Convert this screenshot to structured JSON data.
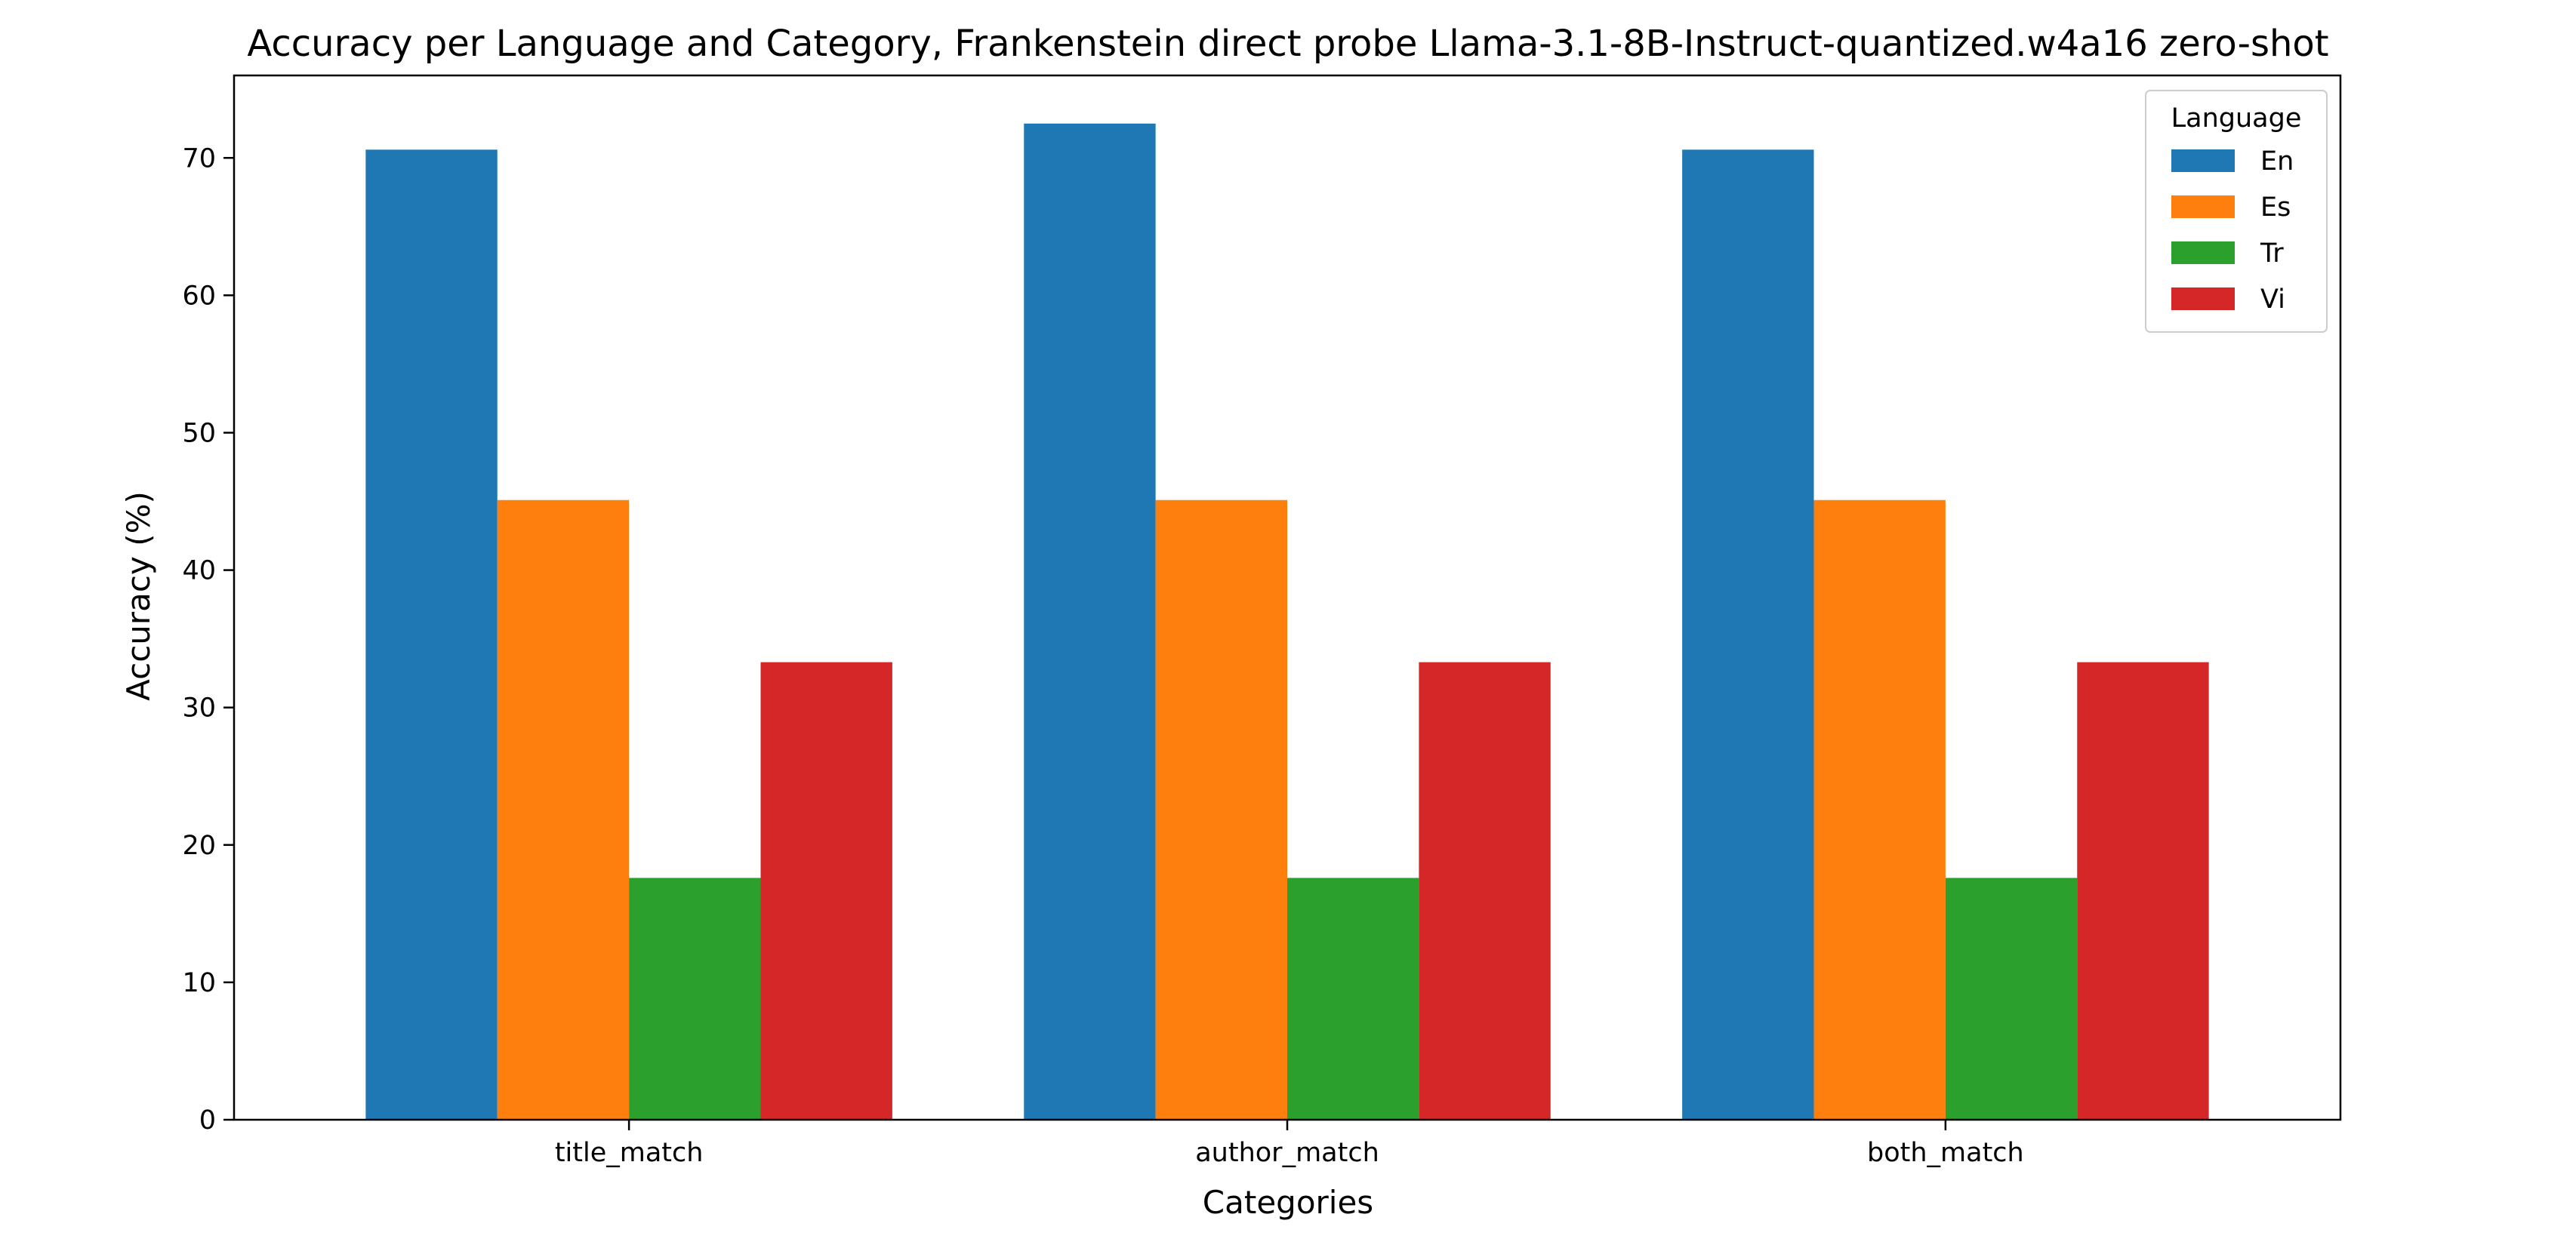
{
  "chart_data": {
    "type": "bar",
    "title": "Accuracy per Language and Category, Frankenstein direct probe Llama-3.1-8B-Instruct-quantized.w4a16 zero-shot",
    "xlabel": "Categories",
    "ylabel": "Accuracy (%)",
    "categories": [
      "title_match",
      "author_match",
      "both_match"
    ],
    "ylim": [
      0,
      76
    ],
    "yticks": [
      0,
      10,
      20,
      30,
      40,
      50,
      60,
      70
    ],
    "grid": false,
    "legend": {
      "title": "Language",
      "placement": "top-right"
    },
    "series": [
      {
        "name": "En",
        "color": "#1f77b4",
        "values": [
          70.6,
          72.5,
          70.6
        ]
      },
      {
        "name": "Es",
        "color": "#ff7f0e",
        "values": [
          45.1,
          45.1,
          45.1
        ]
      },
      {
        "name": "Tr",
        "color": "#2ca02c",
        "values": [
          17.6,
          17.6,
          17.6
        ]
      },
      {
        "name": "Vi",
        "color": "#d62728",
        "values": [
          33.3,
          33.3,
          33.3
        ]
      }
    ]
  }
}
